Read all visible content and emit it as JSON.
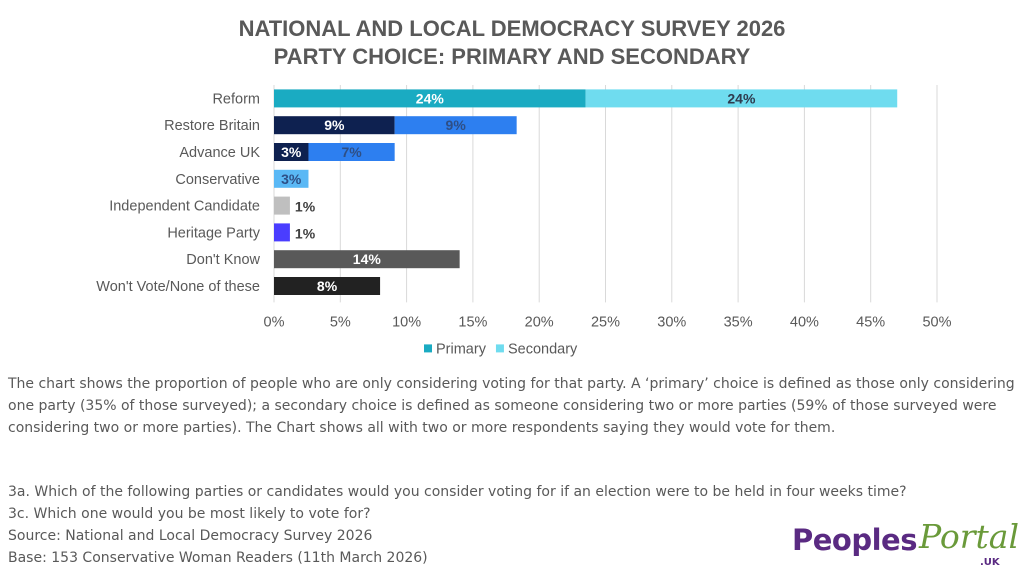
{
  "header": {
    "title_line1": "NATIONAL AND LOCAL DEMOCRACY SURVEY 2026",
    "title_line2": "PARTY CHOICE: PRIMARY AND SECONDARY"
  },
  "chart_data": {
    "type": "bar",
    "orientation": "horizontal",
    "stacked": true,
    "title": "NATIONAL AND LOCAL DEMOCRACY SURVEY 2026 / PARTY CHOICE: PRIMARY AND SECONDARY",
    "xlabel": "",
    "ylabel": "",
    "xlim": [
      0,
      50
    ],
    "xticks": [
      "0%",
      "5%",
      "10%",
      "15%",
      "20%",
      "25%",
      "30%",
      "35%",
      "40%",
      "45%",
      "50%"
    ],
    "grid": true,
    "legend_position": "bottom",
    "legend": [
      {
        "name": "Primary",
        "color": "#1aabc2"
      },
      {
        "name": "Secondary",
        "color": "#6fdcef"
      }
    ],
    "categories": [
      "Reform",
      "Restore Britain",
      "Advance UK",
      "Conservative",
      "Independent Candidate",
      "Heritage Party",
      "Don't Know",
      "Won't Vote/None of these"
    ],
    "series": [
      {
        "name": "Primary",
        "values": [
          23.5,
          9.1,
          2.6,
          null,
          null,
          null,
          null,
          null
        ],
        "labels": [
          "24%",
          "9%",
          "3%",
          null,
          null,
          null,
          null,
          null
        ],
        "colors": [
          "#1aabc2",
          "#0e2150",
          "#0e2150",
          null,
          null,
          null,
          null,
          null
        ],
        "label_colors": [
          "#ffffff",
          "#ffffff",
          "#ffffff",
          null,
          null,
          null,
          null,
          null
        ]
      },
      {
        "name": "Secondary",
        "values": [
          23.5,
          9.2,
          6.5,
          2.6,
          1.2,
          1.2,
          14.0,
          8.0
        ],
        "labels": [
          "24%",
          "9%",
          "7%",
          "3%",
          "1%",
          "1%",
          "14%",
          "8%"
        ],
        "colors": [
          "#6fdcef",
          "#2d7ff0",
          "#2d7ff0",
          "#5ab8f5",
          "#bfbfbf",
          "#4a3dff",
          "#595959",
          "#222222"
        ],
        "label_colors": [
          "#2e3b4e",
          "#2e4f86",
          "#2e4f86",
          "#2e4f86",
          "#404040",
          "#404040",
          "#ffffff",
          "#ffffff"
        ],
        "label_outside": [
          false,
          false,
          false,
          false,
          true,
          true,
          false,
          false
        ]
      }
    ]
  },
  "notes": {
    "description": "The chart shows the proportion of people who are only considering voting for that party.  A ‘primary’ choice is defined as those only considering one party (35% of those surveyed); a secondary choice is defined as someone considering two or more parties (59% of those surveyed were considering two or more parties). The Chart shows all with two or more respondents saying they would vote for them.",
    "question_3a": "3a. Which of the following parties or candidates would you consider voting for if an election were to be held in four weeks time?",
    "question_3c": "3c. Which one would you be most likely to vote for?",
    "source": "Source: National and Local Democracy Survey 2026",
    "base": "Base: 153 Conservative Woman Readers (11th March 2026)"
  },
  "logo": {
    "part1": "Peoples",
    "part2": "Portal",
    "suffix": ".UK",
    "colors": {
      "peoples": "#5a2a82",
      "portal": "#6a9a3a"
    }
  }
}
